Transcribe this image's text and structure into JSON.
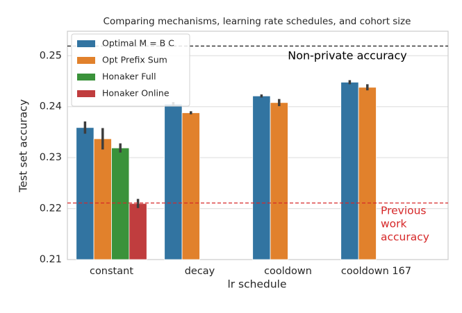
{
  "chart_data": {
    "type": "bar",
    "title": "Comparing mechanisms, learning rate schedules, and cohort size",
    "x_label": "lr schedule",
    "y_label": "Test set accuracy",
    "categories": [
      "constant",
      "decay",
      "cooldown",
      "cooldown 167"
    ],
    "series": [
      {
        "name": "Optimal M = B C",
        "color": "#3274a1",
        "values": [
          0.2359,
          0.2405,
          0.2421,
          0.2448
        ],
        "errors": [
          0.0012,
          0.0004,
          0.0003,
          0.0004
        ]
      },
      {
        "name": "Opt Prefix Sum",
        "color": "#e1812c",
        "values": [
          0.2337,
          0.2388,
          0.2408,
          0.2438
        ],
        "errors": [
          0.0021,
          0.0003,
          0.0007,
          0.0006
        ]
      },
      {
        "name": "Honaker Full",
        "color": "#3a923a",
        "values": [
          0.2319,
          null,
          null,
          null
        ],
        "errors": [
          0.0009,
          null,
          null,
          null
        ]
      },
      {
        "name": "Honaker Online",
        "color": "#c03d3e",
        "values": [
          0.221,
          null,
          null,
          null
        ],
        "errors": [
          0.0009,
          null,
          null,
          null
        ]
      }
    ],
    "reference_lines": [
      {
        "value": 0.2519,
        "label": [
          "Non-private accuracy"
        ],
        "color": "#000000"
      },
      {
        "value": 0.2211,
        "label": [
          "Previous",
          "work",
          "accuracy"
        ],
        "color": "#d62728"
      }
    ],
    "ylim": [
      0.21,
      0.2548
    ],
    "yticks": [
      0.21,
      0.22,
      0.23,
      0.24,
      0.25
    ],
    "grid": true,
    "legend": "upper-left"
  }
}
